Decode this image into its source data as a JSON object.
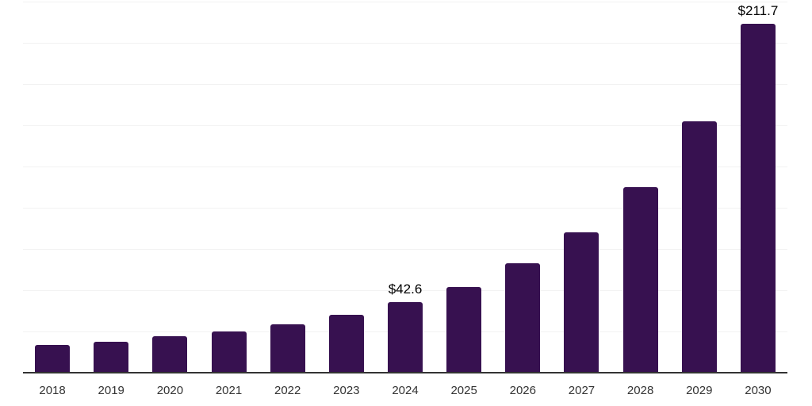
{
  "page": {
    "background_color": "#ffffff"
  },
  "chart_data": {
    "type": "bar",
    "title": "",
    "xlabel": "",
    "ylabel": "",
    "categories": [
      "2018",
      "2019",
      "2020",
      "2021",
      "2022",
      "2023",
      "2024",
      "2025",
      "2026",
      "2027",
      "2028",
      "2029",
      "2030"
    ],
    "values": [
      16.8,
      18.7,
      22.1,
      25.0,
      29.3,
      35.1,
      42.6,
      51.9,
      66.3,
      85.0,
      112.4,
      152.3,
      211.7
    ],
    "annotations": [
      {
        "category": "2024",
        "text": "$42.6"
      },
      {
        "category": "2030",
        "text": "$211.7"
      }
    ],
    "ylim": [
      0,
      225
    ],
    "grid_step": 25,
    "grid": true,
    "y_axis_labels_visible": false,
    "legend": false,
    "bar_color": "#371150",
    "axis_line_color": "#333333",
    "gridline_color": "#f2f2f2",
    "value_label_color": "#000000",
    "tick_label_color": "#333333"
  }
}
